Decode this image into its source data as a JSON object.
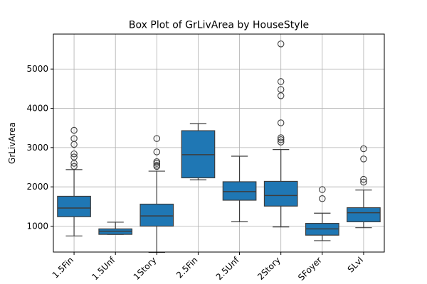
{
  "chart_data": {
    "type": "box",
    "title": "Box Plot of GrLivArea by HouseStyle",
    "xlabel": "",
    "ylabel": "GrLivArea",
    "ylim": [
      340,
      5890
    ],
    "yticks": [
      1000,
      2000,
      3000,
      4000,
      5000
    ],
    "grid": true,
    "box_color": "#1f77b4",
    "categories": [
      "1.5Fin",
      "1.5Unf",
      "1Story",
      "2.5Fin",
      "2.5Unf",
      "2Story",
      "SFoyer",
      "SLvl"
    ],
    "boxes": [
      {
        "category": "1.5Fin",
        "whisker_low": 750,
        "q1": 1240,
        "median": 1460,
        "q3": 1760,
        "whisker_high": 2440,
        "outliers": [
          2520,
          2600,
          2760,
          2840,
          3080,
          3230,
          3440
        ]
      },
      {
        "category": "1.5Unf",
        "whisker_low": 790,
        "q1": 790,
        "median": 870,
        "q3": 930,
        "whisker_high": 1100,
        "outliers": []
      },
      {
        "category": "1Story",
        "whisker_low": 330,
        "q1": 1000,
        "median": 1260,
        "q3": 1560,
        "whisker_high": 2400,
        "outliers": [
          2520,
          2550,
          2600,
          2640,
          2890,
          3230
        ]
      },
      {
        "category": "2.5Fin",
        "whisker_low": 2180,
        "q1": 2230,
        "median": 2820,
        "q3": 3430,
        "whisker_high": 3610,
        "outliers": []
      },
      {
        "category": "2.5Unf",
        "whisker_low": 1110,
        "q1": 1660,
        "median": 1880,
        "q3": 2130,
        "whisker_high": 2780,
        "outliers": []
      },
      {
        "category": "2Story",
        "whisker_low": 980,
        "q1": 1510,
        "median": 1780,
        "q3": 2140,
        "whisker_high": 2950,
        "outliers": [
          3140,
          3200,
          3250,
          3630,
          4320,
          4480,
          4680,
          5640
        ]
      },
      {
        "category": "SFoyer",
        "whisker_low": 630,
        "q1": 770,
        "median": 930,
        "q3": 1070,
        "whisker_high": 1330,
        "outliers": [
          1700,
          1930
        ]
      },
      {
        "category": "SLvl",
        "whisker_low": 960,
        "q1": 1110,
        "median": 1340,
        "q3": 1470,
        "whisker_high": 1920,
        "outliers": [
          2120,
          2190,
          2710,
          2970
        ]
      }
    ]
  }
}
